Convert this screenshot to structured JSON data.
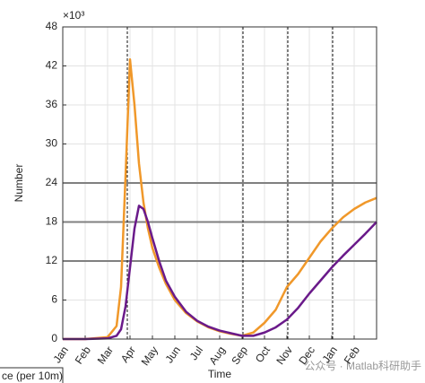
{
  "chart_data": {
    "type": "line",
    "y_label": "Number",
    "x_label": "Time",
    "y_multiplier": "×10³",
    "legend_fragment": "ce (per 10m)",
    "watermark": "公众号 · Matlab科研助手",
    "x": [
      0,
      1,
      2,
      2.4,
      2.6,
      2.8,
      3,
      3.2,
      3.4,
      3.6,
      3.8,
      4,
      4.3,
      4.6,
      5,
      5.5,
      6,
      6.5,
      7,
      7.5,
      8,
      8.5,
      9,
      9.5,
      10,
      10.5,
      11,
      11.5,
      12,
      12.5,
      13,
      13.5,
      14
    ],
    "series": [
      {
        "color": "#f0982a",
        "values": [
          0,
          0,
          0.3,
          2,
          8,
          25,
          43,
          36,
          27,
          21,
          17,
          14,
          11,
          8.5,
          6,
          4,
          2.7,
          1.8,
          1.2,
          0.8,
          0.5,
          1,
          2.5,
          4.5,
          8,
          10,
          12.5,
          15,
          17,
          18.7,
          20,
          21,
          21.7
        ]
      },
      {
        "color": "#6a1a8a",
        "values": [
          0,
          0,
          0.1,
          0.5,
          1.5,
          5,
          11,
          17,
          20.5,
          20,
          18,
          15.5,
          12,
          9,
          6.5,
          4.2,
          2.8,
          1.9,
          1.3,
          0.9,
          0.5,
          0.5,
          1,
          1.8,
          3,
          4.8,
          7,
          9,
          11,
          12.8,
          14.5,
          16.2,
          18
        ]
      }
    ],
    "xlim": [
      0,
      14
    ],
    "xticks": [
      {
        "value": 0,
        "label": "Jan"
      },
      {
        "value": 1,
        "label": "Feb"
      },
      {
        "value": 2,
        "label": "Mar"
      },
      {
        "value": 3,
        "label": "Apr"
      },
      {
        "value": 4,
        "label": "May"
      },
      {
        "value": 5,
        "label": "Jun"
      },
      {
        "value": 6,
        "label": "Jul"
      },
      {
        "value": 7,
        "label": "Aug"
      },
      {
        "value": 8,
        "label": "Sep"
      },
      {
        "value": 9,
        "label": "Oct"
      },
      {
        "value": 10,
        "label": "Nov"
      },
      {
        "value": 11,
        "label": "Dec"
      },
      {
        "value": 12,
        "label": "Jan"
      },
      {
        "value": 13,
        "label": "Feb"
      }
    ],
    "ylim": [
      0,
      48
    ],
    "yticks": [
      0,
      6,
      12,
      18,
      24,
      30,
      36,
      42,
      48
    ],
    "grid": true,
    "hlines": [
      12,
      18,
      24
    ],
    "vlines": [
      2.88,
      8.04,
      10.04,
      12.04
    ]
  }
}
